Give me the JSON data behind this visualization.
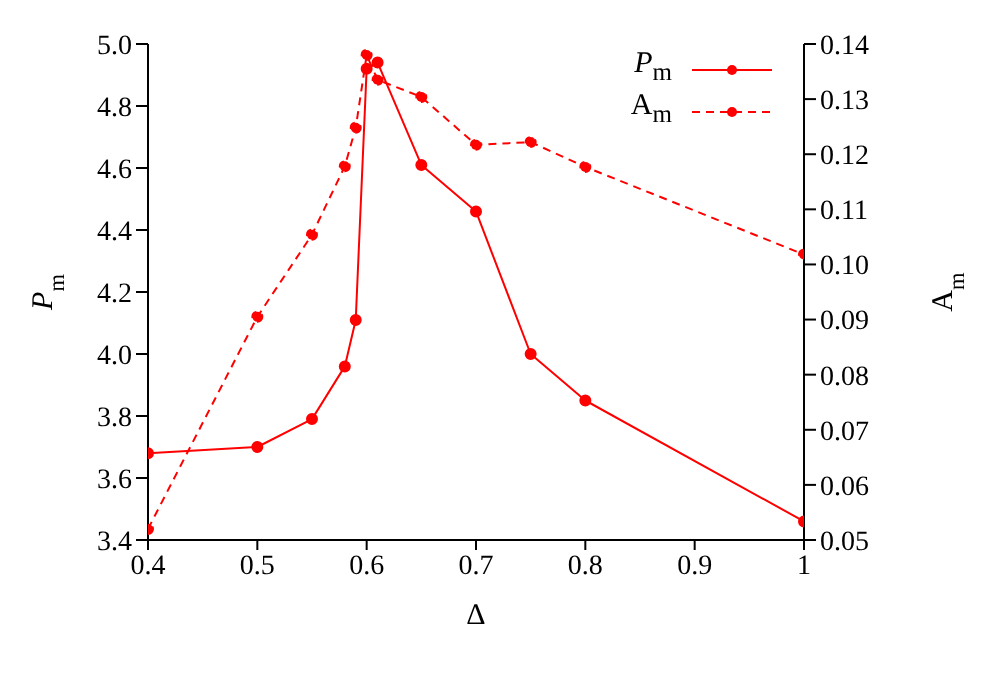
{
  "chart_data": {
    "type": "line",
    "xlabel": "Δ",
    "ylabel": "P$_{m}$",
    "y2label": "A$_{m}$",
    "xlim": [
      0.4,
      1
    ],
    "xticks": [
      0.4,
      0.5,
      0.6,
      0.7,
      0.8,
      0.9,
      1
    ],
    "ylim": [
      3.4,
      5.0
    ],
    "yticks": [
      3.4,
      3.6,
      3.8,
      {
        "value": 4.0,
        "label": "4.0"
      },
      4.2,
      4.4,
      4.6,
      4.8,
      {
        "value": 5.0,
        "label": "5.0"
      }
    ],
    "y2lim": [
      0.05,
      0.14
    ],
    "y2ticks": [
      0.05,
      0.06,
      0.07,
      0.08,
      0.09,
      {
        "value": 0.1,
        "label": "0.10"
      },
      0.11,
      0.12,
      0.13,
      0.14
    ],
    "grid": false,
    "legend": "top right",
    "marker": "circle",
    "series": [
      {
        "name": "P$_{m}$",
        "color": "#ff0000",
        "line_style": "solid",
        "x": [
          0.4,
          0.5,
          0.55,
          0.58,
          0.59,
          0.6,
          0.61,
          0.65,
          0.7,
          0.75,
          0.8,
          1.0
        ],
        "values": [
          3.68,
          3.7,
          3.79,
          3.96,
          4.11,
          4.92,
          4.94,
          4.61,
          4.46,
          4.0,
          3.85,
          3.46
        ]
      },
      {
        "name": "A$_{m}$",
        "color": "#ff0000",
        "line_style": "dashed",
        "axis": "y2",
        "x": [
          0.4,
          0.5,
          0.55,
          0.58,
          0.59,
          0.6,
          0.61,
          0.65,
          0.7,
          0.75,
          0.8,
          1.0
        ],
        "values": [
          0.052,
          0.0905,
          0.1054,
          0.1178,
          0.1248,
          0.138,
          0.1335,
          0.1304,
          0.1217,
          0.1222,
          0.1177,
          0.1018
        ]
      }
    ]
  }
}
